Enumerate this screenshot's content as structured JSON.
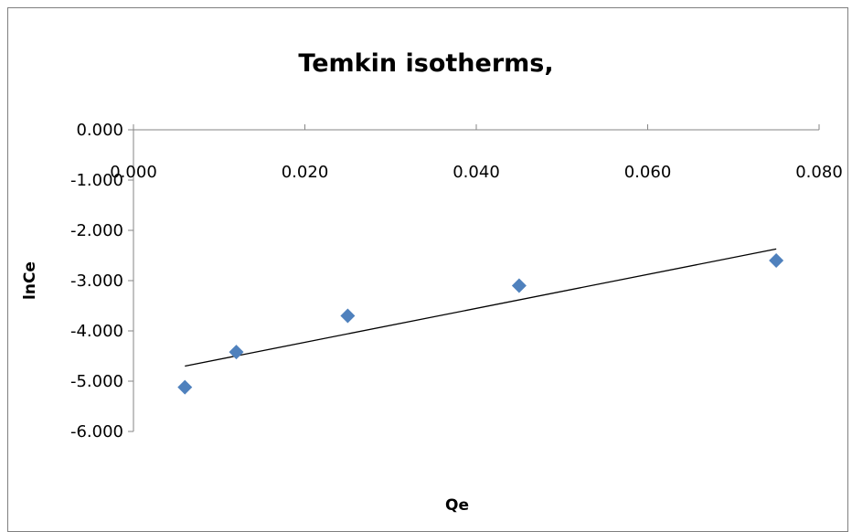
{
  "chart_data": {
    "type": "scatter",
    "title": "Temkin isotherms,",
    "xlabel": "Qe",
    "ylabel": "lnCe",
    "xlim": [
      0,
      0.08
    ],
    "ylim": [
      -6,
      0
    ],
    "x_ticks": [
      "0.000",
      "0.020",
      "0.040",
      "0.060",
      "0.080"
    ],
    "x_tick_values": [
      0,
      0.02,
      0.04,
      0.06,
      0.08
    ],
    "y_ticks": [
      "0.000",
      "-1.000",
      "-2.000",
      "-3.000",
      "-4.000",
      "-5.000",
      "-6.000"
    ],
    "y_tick_values": [
      0,
      -1,
      -2,
      -3,
      -4,
      -5,
      -6
    ],
    "series": [
      {
        "x": [
          0.006,
          0.012,
          0.025,
          0.045,
          0.075
        ],
        "y": [
          -5.12,
          -4.42,
          -3.7,
          -3.1,
          -2.6
        ],
        "marker": "diamond",
        "color": "#4f81bd"
      }
    ],
    "trendline": {
      "type": "linear",
      "x": [
        0.006,
        0.075
      ],
      "y": [
        -4.7,
        -2.37
      ],
      "color": "#000000"
    },
    "grid": false,
    "legend": "none"
  }
}
